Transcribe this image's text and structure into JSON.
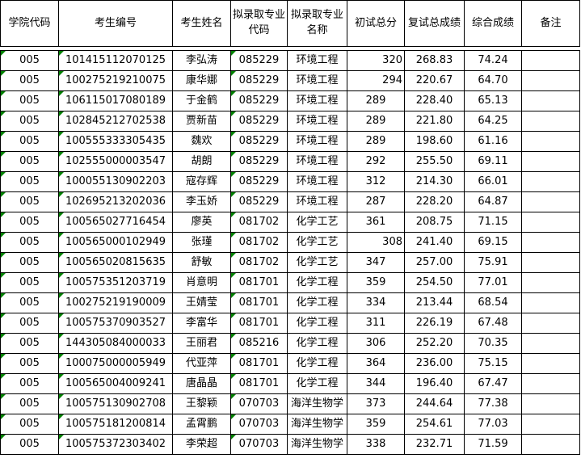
{
  "colors": {
    "text_flag_triangle": "#008000",
    "grid_border": "#000000",
    "background": "#ffffff",
    "text": "#000000"
  },
  "table": {
    "columns": [
      {
        "key": "college-code",
        "label": "学院代码"
      },
      {
        "key": "candidate-id",
        "label": "考生编号"
      },
      {
        "key": "candidate-name",
        "label": "考生姓名"
      },
      {
        "key": "major-code",
        "label": "拟录取专业代码"
      },
      {
        "key": "major-name",
        "label": "拟录取专业名称"
      },
      {
        "key": "initial-score",
        "label": "初试总分"
      },
      {
        "key": "retest-score",
        "label": "复试总成绩"
      },
      {
        "key": "overall-score",
        "label": "综合成绩"
      },
      {
        "key": "remark",
        "label": "备注"
      }
    ],
    "text_flag_columns": [
      0,
      1,
      3
    ],
    "right_aligned_initial_score_rows": [
      0,
      1,
      9
    ],
    "rows": [
      [
        "005",
        "101415112070125",
        "李弘涛",
        "085229",
        "环境工程",
        "320",
        "268.83",
        "74.24",
        ""
      ],
      [
        "005",
        "100275219210075",
        "康华娜",
        "085229",
        "环境工程",
        "294",
        "220.67",
        "64.70",
        ""
      ],
      [
        "005",
        "106115017080189",
        "于金鹤",
        "085229",
        "环境工程",
        "289",
        "228.40",
        "65.13",
        ""
      ],
      [
        "005",
        "102845212702538",
        "贾新苗",
        "085229",
        "环境工程",
        "289",
        "221.80",
        "64.25",
        ""
      ],
      [
        "005",
        "100555333305435",
        "魏欢",
        "085229",
        "环境工程",
        "289",
        "198.60",
        "61.16",
        ""
      ],
      [
        "005",
        "102555000003547",
        "胡朗",
        "085229",
        "环境工程",
        "292",
        "255.50",
        "69.11",
        ""
      ],
      [
        "005",
        "100055130902203",
        "寇存辉",
        "085229",
        "环境工程",
        "312",
        "214.30",
        "66.01",
        ""
      ],
      [
        "005",
        "102695213202036",
        "李玉娇",
        "085229",
        "环境工程",
        "287",
        "228.20",
        "64.87",
        ""
      ],
      [
        "005",
        "100565027716454",
        "廖英",
        "081702",
        "化学工艺",
        "361",
        "208.75",
        "71.15",
        ""
      ],
      [
        "005",
        "100565000102949",
        "张瑾",
        "081702",
        "化学工艺",
        "308",
        "241.40",
        "69.15",
        ""
      ],
      [
        "005",
        "100565020815635",
        "舒敏",
        "081702",
        "化学工艺",
        "347",
        "257.00",
        "75.91",
        ""
      ],
      [
        "005",
        "100575351203719",
        "肖意明",
        "081701",
        "化学工程",
        "359",
        "254.50",
        "77.01",
        ""
      ],
      [
        "005",
        "100275219190009",
        "王婧莹",
        "081701",
        "化学工程",
        "334",
        "213.44",
        "68.54",
        ""
      ],
      [
        "005",
        "100575370903527",
        "李富华",
        "081701",
        "化学工程",
        "311",
        "226.19",
        "67.48",
        ""
      ],
      [
        "005",
        "144305084000033",
        "王丽君",
        "085216",
        "化学工程",
        "306",
        "252.20",
        "70.35",
        ""
      ],
      [
        "005",
        "100075000005949",
        "代亚萍",
        "081701",
        "化学工程",
        "364",
        "236.00",
        "75.15",
        ""
      ],
      [
        "005",
        "100565004009241",
        "唐晶晶",
        "081701",
        "化学工程",
        "344",
        "196.40",
        "67.47",
        ""
      ],
      [
        "005",
        "100575130902708",
        "王黎颖",
        "070703",
        "海洋生物学",
        "373",
        "244.64",
        "77.38",
        ""
      ],
      [
        "005",
        "100575181200814",
        "孟霄鹏",
        "070703",
        "海洋生物学",
        "359",
        "254.61",
        "77.03",
        ""
      ],
      [
        "005",
        "100575372303402",
        "李荣超",
        "070703",
        "海洋生物学",
        "338",
        "232.71",
        "71.59",
        ""
      ]
    ]
  }
}
